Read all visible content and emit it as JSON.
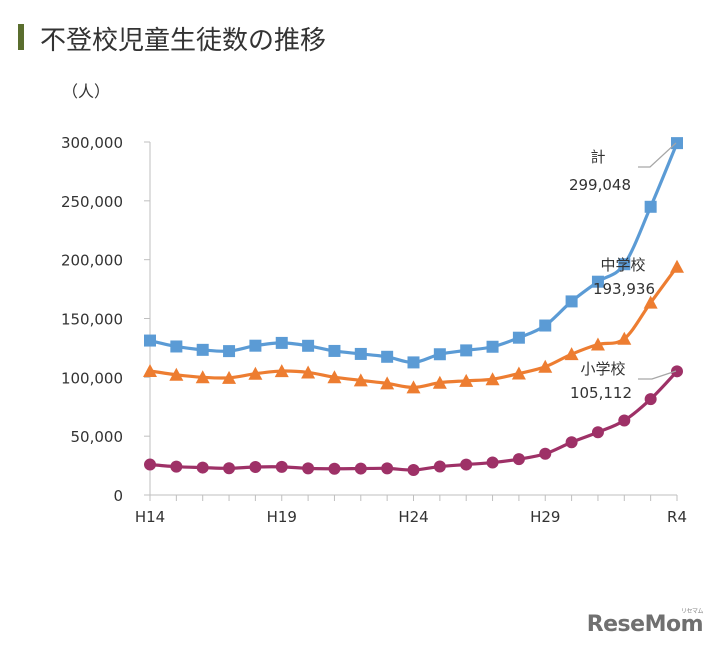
{
  "header": {
    "title": "不登校児童生徒数の推移",
    "unit": "（人）"
  },
  "logo": {
    "text": "ReseMom",
    "sub": "リセマム"
  },
  "chart_data": {
    "type": "line",
    "title": "不登校児童生徒数の推移",
    "ylabel": "（人）",
    "xlabel": "",
    "x": [
      "H14",
      "H15",
      "H16",
      "H17",
      "H18",
      "H19",
      "H20",
      "H21",
      "H22",
      "H23",
      "H24",
      "H25",
      "H26",
      "H27",
      "H28",
      "H29",
      "H30",
      "R1",
      "R2",
      "R3",
      "R4"
    ],
    "x_tick_labels": [
      "H14",
      "H19",
      "H24",
      "H29",
      "R4"
    ],
    "x_tick_index": [
      0,
      5,
      10,
      15,
      20
    ],
    "ylim": [
      0,
      300000
    ],
    "y_ticks": [
      0,
      50000,
      100000,
      150000,
      200000,
      250000,
      300000
    ],
    "y_tick_labels": [
      "0",
      "50,000",
      "100,000",
      "150,000",
      "200,000",
      "250,000",
      "300,000"
    ],
    "grid": false,
    "series": [
      {
        "name": "計",
        "color": "#5b9bd5",
        "marker": "square",
        "end_label": "299,048",
        "values": [
          131252,
          126226,
          123358,
          122287,
          126894,
          129255,
          126805,
          122432,
          119891,
          117458,
          112689,
          119617,
          122897,
          125991,
          133683,
          144031,
          164528,
          181272,
          196127,
          244940,
          299048
        ]
      },
      {
        "name": "中学校",
        "color": "#ed7d31",
        "marker": "triangle",
        "end_label": "193,936",
        "values": [
          105383,
          102149,
          100040,
          99578,
          103069,
          105328,
          104153,
          100105,
          97428,
          94836,
          91446,
          95442,
          97033,
          98408,
          103235,
          108999,
          119687,
          127922,
          132777,
          163442,
          193936
        ]
      },
      {
        "name": "小学校",
        "color": "#9e3167",
        "marker": "circle",
        "end_label": "105,112",
        "values": [
          25869,
          24077,
          23318,
          22709,
          23825,
          23927,
          22652,
          22327,
          22463,
          22622,
          21243,
          24175,
          25864,
          27583,
          30448,
          35032,
          44841,
          53350,
          63350,
          81498,
          105112
        ]
      }
    ]
  }
}
